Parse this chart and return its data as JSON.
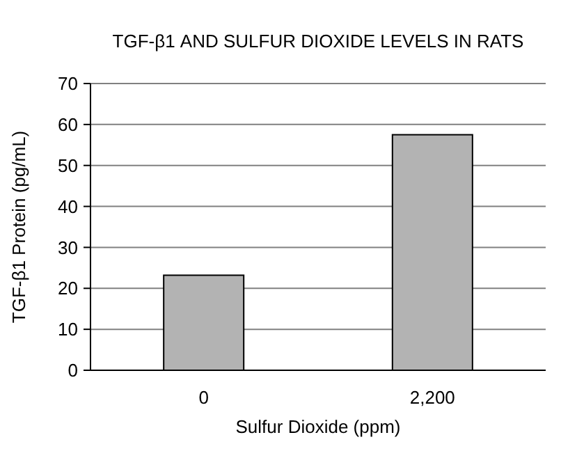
{
  "chart_data": {
    "type": "bar",
    "title": "TGF-β1 AND SULFUR DIOXIDE LEVELS IN RATS",
    "xlabel": "Sulfur Dioxide (ppm)",
    "ylabel": "TGF-β1 Protein (pg/mL)",
    "categories": [
      "0",
      "2,200"
    ],
    "values": [
      23.2,
      57.5
    ],
    "color": "#b3b3b3",
    "ylim": [
      0,
      70
    ],
    "yticks": [
      0,
      10,
      20,
      30,
      40,
      50,
      60,
      70
    ],
    "grid": "y"
  }
}
